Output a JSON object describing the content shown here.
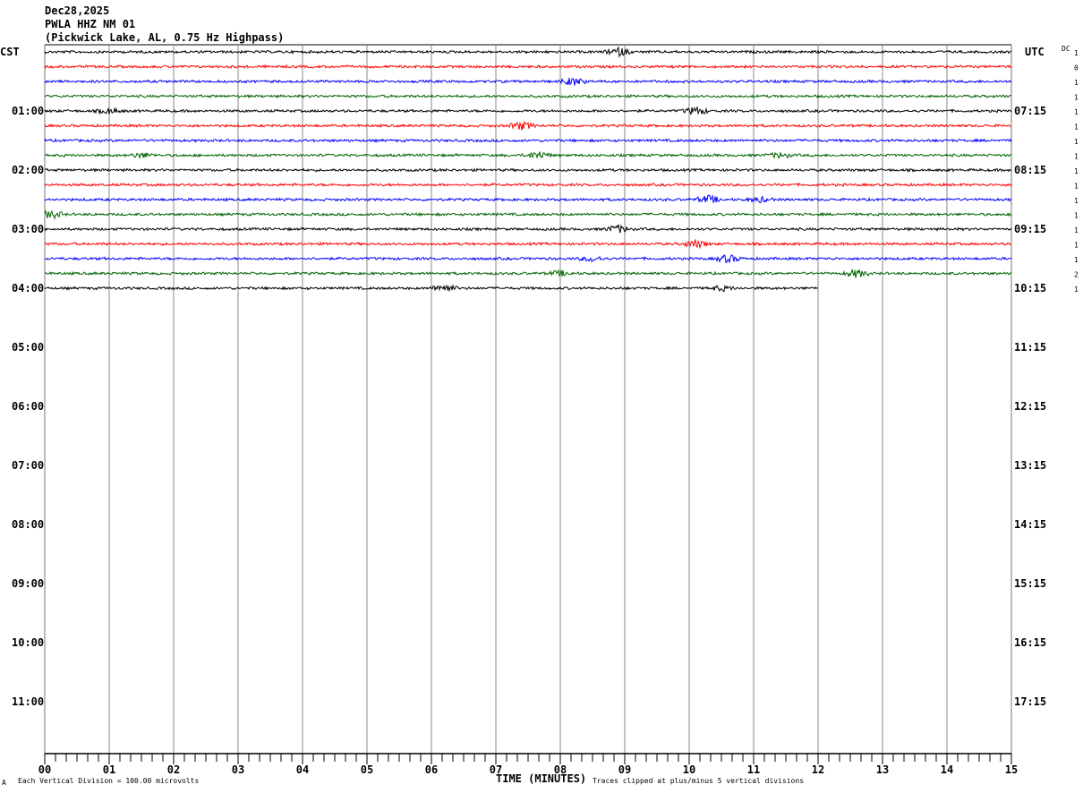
{
  "header": {
    "date": "Dec28,2025",
    "station": "PWLA HHZ NM 01",
    "description": "(Pickwick Lake, AL, 0.75 Hz Highpass)"
  },
  "left_axis_title": "CST",
  "right_axis_title": "UTC",
  "dc_title": "DC",
  "footer": {
    "scale_note": "Each Vertical Division =  100.00 microvolts",
    "xlabel": "TIME (MINUTES)",
    "clip_note": "Traces clipped at plus/minus 5 vertical divisions",
    "corner_mark": "A"
  },
  "chart_data": {
    "type": "line",
    "subtype": "helicorder",
    "xlabel": "TIME (MINUTES)",
    "xlim": [
      0,
      15
    ],
    "x_ticks": [
      "00",
      "01",
      "02",
      "03",
      "04",
      "05",
      "06",
      "07",
      "08",
      "09",
      "10",
      "11",
      "12",
      "13",
      "14",
      "15"
    ],
    "rows_per_hour": 4,
    "minutes_per_row": 15,
    "left_hour_labels": [
      "CST",
      "01:00",
      "02:00",
      "03:00",
      "04:00",
      "05:00",
      "06:00",
      "07:00",
      "08:00",
      "09:00",
      "10:00",
      "11:00"
    ],
    "right_hour_labels": [
      "UTC",
      "07:15",
      "08:15",
      "09:15",
      "10:15",
      "11:15",
      "12:15",
      "13:15",
      "14:15",
      "15:15",
      "16:15",
      "17:15"
    ],
    "trace_colors": [
      "#000000",
      "#ff0000",
      "#0000ff",
      "#006400"
    ],
    "grid": true,
    "traces": [
      {
        "dc": "1",
        "end_min": 15,
        "events": [
          8.9
        ]
      },
      {
        "dc": "0",
        "end_min": 15,
        "events": []
      },
      {
        "dc": "1",
        "end_min": 15,
        "events": [
          8.2
        ]
      },
      {
        "dc": "1",
        "end_min": 15,
        "events": []
      },
      {
        "dc": "1",
        "end_min": 15,
        "events": [
          10.1,
          1.0
        ]
      },
      {
        "dc": "1",
        "end_min": 15,
        "events": [
          7.4
        ]
      },
      {
        "dc": "1",
        "end_min": 15,
        "events": []
      },
      {
        "dc": "1",
        "end_min": 15,
        "events": [
          7.65,
          1.5,
          11.4
        ]
      },
      {
        "dc": "1",
        "end_min": 15,
        "events": []
      },
      {
        "dc": "1",
        "end_min": 15,
        "events": []
      },
      {
        "dc": "1",
        "end_min": 15,
        "events": [
          10.3,
          11.1
        ]
      },
      {
        "dc": "1",
        "end_min": 15,
        "events": [
          0.1
        ]
      },
      {
        "dc": "1",
        "end_min": 15,
        "events": [
          8.9
        ]
      },
      {
        "dc": "1",
        "end_min": 15,
        "events": [
          10.1
        ]
      },
      {
        "dc": "1",
        "end_min": 15,
        "events": [
          10.6,
          8.5
        ]
      },
      {
        "dc": "2",
        "end_min": 15,
        "events": [
          12.6,
          8.0
        ]
      },
      {
        "dc": "1",
        "end_min": 12,
        "events": [
          6.2,
          10.5
        ]
      }
    ]
  }
}
